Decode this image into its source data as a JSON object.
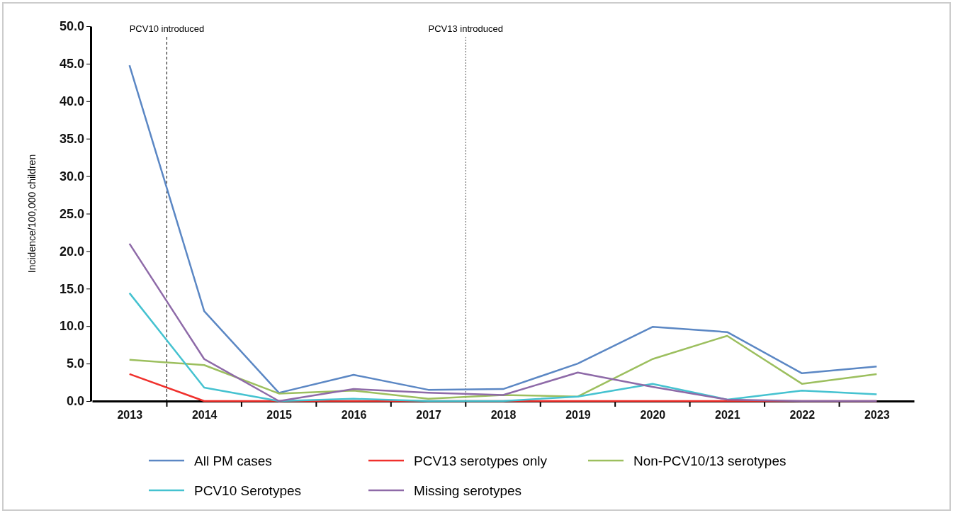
{
  "chart_data": {
    "type": "line",
    "ylabel": "Incidence/100,000 children",
    "x": [
      2013,
      2014,
      2015,
      2016,
      2017,
      2018,
      2019,
      2020,
      2021,
      2022,
      2023
    ],
    "xlim": [
      2012.5,
      2023.5
    ],
    "xticks": [
      2013,
      2014,
      2015,
      2016,
      2017,
      2018,
      2019,
      2020,
      2021,
      2022,
      2023
    ],
    "ylim": [
      0,
      50
    ],
    "yticks": [
      {
        "value": 0,
        "label": "0.0"
      },
      {
        "value": 5,
        "label": "5.0"
      },
      {
        "value": 10,
        "label": "10.0"
      },
      {
        "value": 15,
        "label": "15.0"
      },
      {
        "value": 20,
        "label": "20.0"
      },
      {
        "value": 25,
        "label": "25.0"
      },
      {
        "value": 30,
        "label": "30.0"
      },
      {
        "value": 35,
        "label": "35.0"
      },
      {
        "value": 40,
        "label": "40.0"
      },
      {
        "value": 45,
        "label": "45.0"
      },
      {
        "value": 50,
        "label": "50.0"
      }
    ],
    "series": [
      {
        "name": "All PM cases",
        "color": "#5b87c4",
        "values": [
          44.8,
          12.0,
          1.1,
          3.5,
          1.5,
          1.6,
          5.0,
          9.9,
          9.2,
          3.7,
          4.6
        ]
      },
      {
        "name": "PCV13 serotypes only",
        "color": "#f0302c",
        "values": [
          3.6,
          0,
          0,
          0,
          0,
          0,
          0,
          0,
          0,
          0,
          0
        ]
      },
      {
        "name": "Non-PCV10/13 serotypes",
        "color": "#9cbf5e",
        "values": [
          5.5,
          4.8,
          1.0,
          1.4,
          0.3,
          0.8,
          0.6,
          5.6,
          8.7,
          2.3,
          3.6
        ]
      },
      {
        "name": "PCV10 Serotypes",
        "color": "#45c2d0",
        "values": [
          14.4,
          1.8,
          0,
          0.3,
          0,
          0,
          0.6,
          2.3,
          0.2,
          1.4,
          0.9
        ]
      },
      {
        "name": "Missing serotypes",
        "color": "#8e6aa8",
        "values": [
          21.0,
          5.6,
          0,
          1.6,
          1.1,
          0.8,
          3.8,
          1.9,
          0.2,
          0,
          0
        ]
      }
    ],
    "ref_lines": [
      {
        "axis": "x",
        "value": 2013.5,
        "label": "PCV10 introduced",
        "color": "#000000",
        "line_style": "dashed"
      },
      {
        "axis": "x",
        "value": 2017.5,
        "label": "PCV13 introduced",
        "color": "#555555",
        "line_style": "dotted"
      }
    ],
    "legend": "bottom",
    "marker": "none",
    "line_style": "solid",
    "grid": false
  }
}
